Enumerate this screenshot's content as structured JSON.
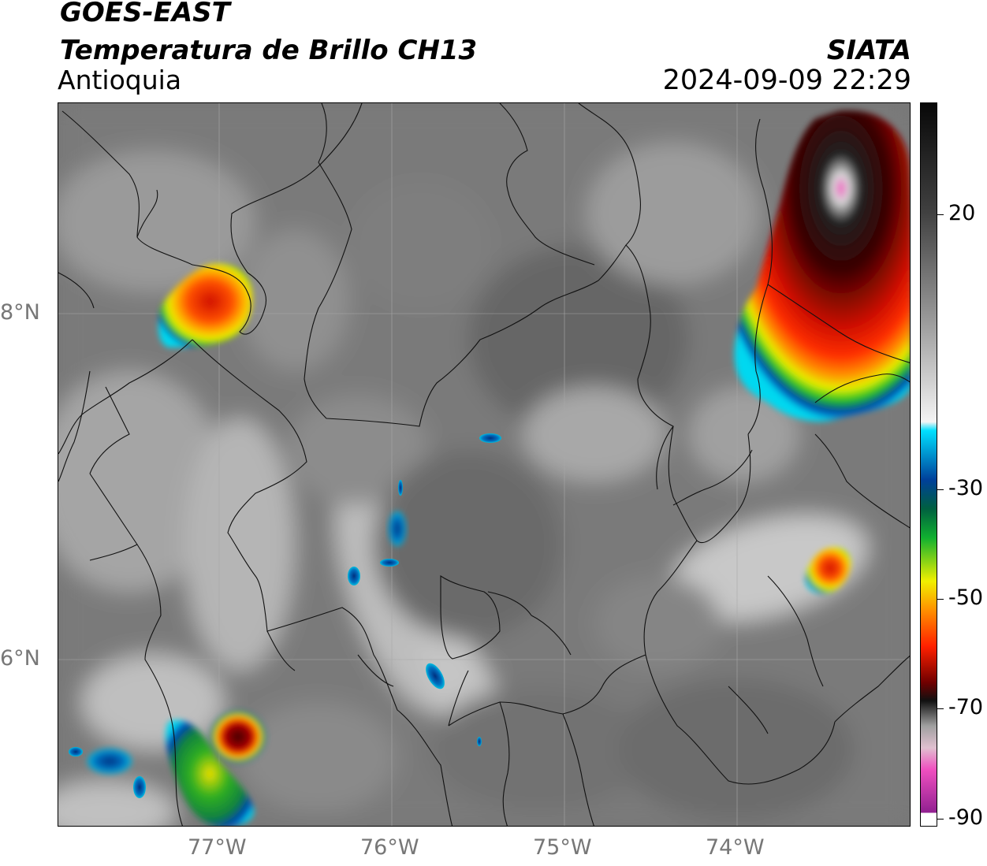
{
  "header": {
    "satellite": "GOES-EAST",
    "product": "Temperatura de Brillo CH13",
    "region": "Antioquia",
    "brand": "SIATA",
    "timestamp": "2024-09-09 22:29"
  },
  "axes": {
    "lat_labels": [
      "8°N",
      "6°N"
    ],
    "lon_labels": [
      "77°W",
      "76°W",
      "75°W",
      "74°W"
    ]
  },
  "colorbar": {
    "unit_label": "",
    "tick_labels": [
      "20",
      "-30",
      "-50",
      "-70",
      "-90"
    ],
    "colors": {
      "warm_top": "#101010",
      "gray_mid": "#808080",
      "white": "#f8f8f8",
      "cyan": "#00d8f0",
      "blue": "#0030a0",
      "green": "#10b030",
      "yellow": "#f0f000",
      "orange": "#ff9000",
      "red": "#e01000",
      "dark_red": "#500000",
      "black": "#080808",
      "pink": "#f060c0",
      "purple": "#902090"
    }
  }
}
